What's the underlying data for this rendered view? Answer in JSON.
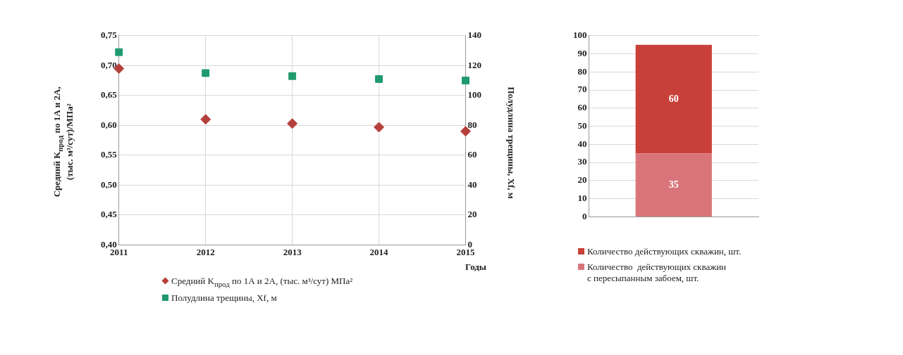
{
  "chart_data": [
    {
      "type": "scatter",
      "categories": [
        "2011",
        "2012",
        "2013",
        "2014",
        "2015"
      ],
      "xlabel": "Годы",
      "ylabel": "Средний K$_{прод}$ по 1А и 2А, (тыс. м³/сут)/МПа²",
      "y2label": "Полудлина трещины, Xf, м",
      "series": [
        {
          "name": "Средний K$_{прод}$ по 1А и 2А, (тыс. м³/сут) МПа²",
          "color": "#b5403b",
          "marker": "diamond",
          "values": [
            0.695,
            0.61,
            0.603,
            0.597,
            0.59
          ]
        },
        {
          "name": "Полудлина трещины, Xf, м",
          "color": "#1e9a6e",
          "marker": "square",
          "axis": "y2",
          "values": [
            129,
            115,
            113,
            111,
            110
          ]
        }
      ],
      "ylim": [
        0.4,
        0.75
      ],
      "yticks": [
        {
          "value": 0.4,
          "label": "0,40"
        },
        {
          "value": 0.45,
          "label": "0,45"
        },
        {
          "value": 0.5,
          "label": "0,50"
        },
        {
          "value": 0.55,
          "label": "0,55"
        },
        {
          "value": 0.6,
          "label": "0,60"
        },
        {
          "value": 0.65,
          "label": "0,65"
        },
        {
          "value": 0.7,
          "label": "0,70"
        },
        {
          "value": 0.75,
          "label": "0,75"
        }
      ],
      "y2lim": [
        0,
        140
      ],
      "y2ticks": [
        0,
        20,
        40,
        60,
        80,
        100,
        120,
        140
      ],
      "grid": true,
      "legend": "bottom"
    },
    {
      "type": "bar",
      "stacked": true,
      "categories": [
        null
      ],
      "series": [
        {
          "name": "Количество  действующих скважин\nс пересыпанным забоем, шт.",
          "color": "#d9757a",
          "values": [
            35
          ]
        },
        {
          "name": "Количество действующих скважин, шт.",
          "color": "#c9403a",
          "values": [
            60
          ]
        }
      ],
      "ylim": [
        0,
        100
      ],
      "yticks": [
        0,
        10,
        20,
        30,
        40,
        50,
        60,
        70,
        80,
        90,
        100
      ],
      "grid": "y",
      "legend": "bottom",
      "data_labels": true
    }
  ]
}
